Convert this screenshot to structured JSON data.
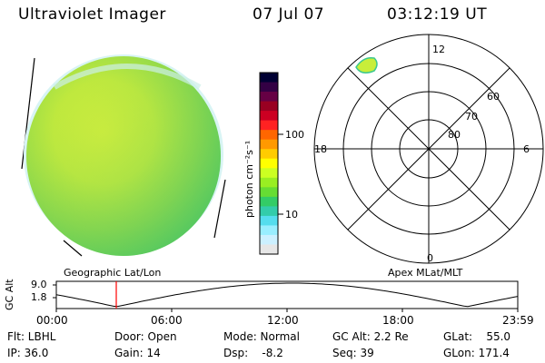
{
  "header": {
    "title": "Ultraviolet Imager",
    "date": "07 Jul 07",
    "time": "03:12:19 UT"
  },
  "colorbar": {
    "unit_label": "photon cm⁻²s⁻¹",
    "ticks": [
      "100",
      "10"
    ],
    "colors": [
      "#000033",
      "#330044",
      "#660044",
      "#990022",
      "#cc0022",
      "#ff2222",
      "#ff6600",
      "#ff9900",
      "#ffcc00",
      "#ffff00",
      "#ccff22",
      "#99ee22",
      "#66dd33",
      "#33cc66",
      "#33ccaa",
      "#55ddee",
      "#99eeff",
      "#ccf0ff",
      "#e6e6e6"
    ]
  },
  "panels": {
    "left_caption": "Geographic Lat/Lon",
    "right_caption": "Apex MLat/MLT"
  },
  "polar": {
    "mlt_labels": {
      "top": "12",
      "left": "18",
      "right": "6",
      "bottom": "0"
    },
    "lat_labels": [
      "60",
      "70",
      "80"
    ]
  },
  "alt_plot": {
    "ylabel": "GC Alt",
    "yticks": [
      "9.0",
      "1.8"
    ],
    "xticks": [
      "00:00",
      "06:00",
      "12:00",
      "18:00",
      "23:59"
    ],
    "marker_color": "#ff0000"
  },
  "info": {
    "flt": "Flt: LBHL",
    "ip": "IP: 36.0",
    "door": "Door: Open",
    "gain": "Gain: 14",
    "mode": "Mode: Normal",
    "dsp": "Dsp:    -8.2",
    "gcalt": "GC Alt: 2.2 Re",
    "seq": "Seq: 39",
    "glat": "GLat:    55.0",
    "glon": "GLon: 171.4"
  }
}
